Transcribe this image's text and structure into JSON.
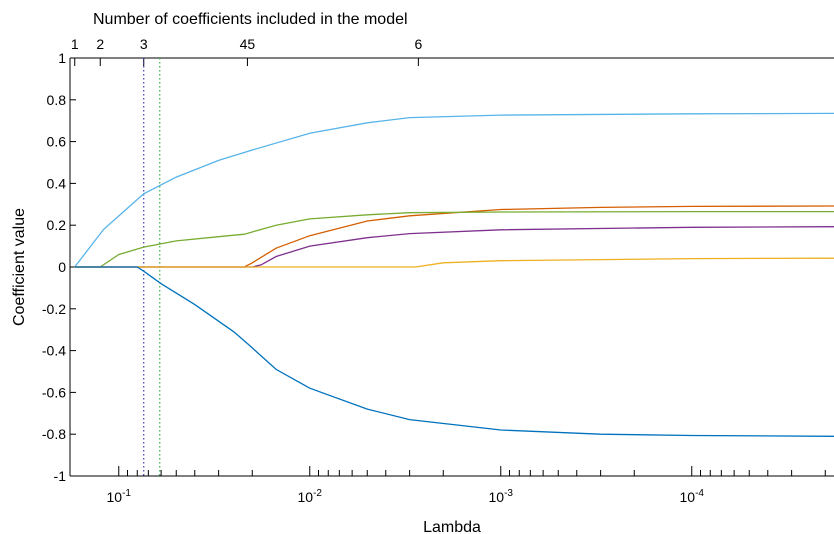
{
  "chart_data": {
    "type": "line",
    "title": "Number of coefficients included in the model",
    "xlabel": "Lambda",
    "ylabel": "Coefficient value",
    "x_scale": "log-reversed",
    "xlim": [
      0.18,
      1.8e-05
    ],
    "ylim": [
      -1,
      1
    ],
    "grid": false,
    "legend": "none",
    "y_ticks": [
      "1",
      "0.8",
      "0.6",
      "0.4",
      "0.2",
      "0",
      "-0.2",
      "-0.4",
      "-0.6",
      "-0.8",
      "-1"
    ],
    "y_tick_values": [
      1,
      0.8,
      0.6,
      0.4,
      0.2,
      0,
      -0.2,
      -0.4,
      -0.6,
      -0.8,
      -1
    ],
    "x_major_ticks": [
      {
        "value": 0.1,
        "base": "10",
        "exp": "-1"
      },
      {
        "value": 0.01,
        "base": "10",
        "exp": "-2"
      },
      {
        "value": 0.001,
        "base": "10",
        "exp": "-3"
      },
      {
        "value": 0.0001,
        "base": "10",
        "exp": "-4"
      }
    ],
    "top_ticks": [
      {
        "label": "1",
        "lambda": 0.17
      },
      {
        "label": "2",
        "lambda": 0.125
      },
      {
        "label": "3",
        "lambda": 0.074
      },
      {
        "label": "45",
        "lambda": 0.0212
      },
      {
        "label": "6",
        "lambda": 0.0027
      }
    ],
    "vlines": [
      {
        "lambda": 0.074,
        "color": "#3b3bc4"
      },
      {
        "lambda": 0.061,
        "color": "#33b24a"
      }
    ],
    "series": [
      {
        "color": "#56b4e9",
        "points": [
          [
            0.17,
            0
          ],
          [
            0.12,
            0.18
          ],
          [
            0.074,
            0.35
          ],
          [
            0.05,
            0.43
          ],
          [
            0.03,
            0.51
          ],
          [
            0.02,
            0.56
          ],
          [
            0.01,
            0.64
          ],
          [
            0.005,
            0.69
          ],
          [
            0.003,
            0.715
          ],
          [
            0.001,
            0.727
          ],
          [
            0.0001,
            0.733
          ],
          [
            1.8e-05,
            0.735
          ]
        ]
      },
      {
        "color": "#d55e00",
        "points": [
          [
            0.17,
            0
          ],
          [
            0.022,
            0
          ],
          [
            0.02,
            0.02
          ],
          [
            0.015,
            0.09
          ],
          [
            0.01,
            0.15
          ],
          [
            0.005,
            0.22
          ],
          [
            0.003,
            0.245
          ],
          [
            0.001,
            0.275
          ],
          [
            0.0003,
            0.285
          ],
          [
            0.0001,
            0.29
          ],
          [
            1.8e-05,
            0.292
          ]
        ]
      },
      {
        "color": "#77ac30",
        "points": [
          [
            0.17,
            0
          ],
          [
            0.125,
            0
          ],
          [
            0.1,
            0.06
          ],
          [
            0.074,
            0.095
          ],
          [
            0.05,
            0.125
          ],
          [
            0.03,
            0.145
          ],
          [
            0.022,
            0.157
          ],
          [
            0.015,
            0.2
          ],
          [
            0.01,
            0.23
          ],
          [
            0.005,
            0.25
          ],
          [
            0.003,
            0.26
          ],
          [
            0.001,
            0.263
          ],
          [
            0.0001,
            0.265
          ],
          [
            1.8e-05,
            0.265
          ]
        ]
      },
      {
        "color": "#7e2f8e",
        "points": [
          [
            0.17,
            0
          ],
          [
            0.02,
            0
          ],
          [
            0.018,
            0.01
          ],
          [
            0.015,
            0.05
          ],
          [
            0.01,
            0.1
          ],
          [
            0.005,
            0.14
          ],
          [
            0.003,
            0.16
          ],
          [
            0.001,
            0.178
          ],
          [
            0.0001,
            0.19
          ],
          [
            1.8e-05,
            0.193
          ]
        ]
      },
      {
        "color": "#edb120",
        "points": [
          [
            0.17,
            0
          ],
          [
            0.0028,
            0
          ],
          [
            0.002,
            0.02
          ],
          [
            0.001,
            0.03
          ],
          [
            0.0001,
            0.04
          ],
          [
            1.8e-05,
            0.042
          ]
        ]
      },
      {
        "color": "#0072bd",
        "points": [
          [
            0.17,
            0
          ],
          [
            0.08,
            0
          ],
          [
            0.074,
            -0.02
          ],
          [
            0.06,
            -0.08
          ],
          [
            0.04,
            -0.18
          ],
          [
            0.025,
            -0.31
          ],
          [
            0.021,
            -0.37
          ],
          [
            0.015,
            -0.49
          ],
          [
            0.01,
            -0.58
          ],
          [
            0.005,
            -0.68
          ],
          [
            0.003,
            -0.73
          ],
          [
            0.001,
            -0.78
          ],
          [
            0.0003,
            -0.8
          ],
          [
            0.0001,
            -0.806
          ],
          [
            1.8e-05,
            -0.81
          ]
        ]
      }
    ]
  }
}
